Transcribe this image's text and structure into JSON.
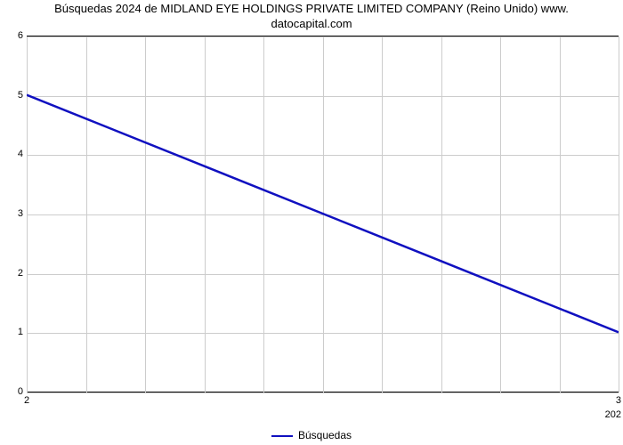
{
  "chart": {
    "type": "line",
    "title_line1": "Búsquedas 2024 de MIDLAND EYE HOLDINGS PRIVATE LIMITED COMPANY (Reino Unido) www.",
    "title_line2": "datocapital.com",
    "title_fontsize": 13,
    "title_color": "#000000",
    "background_color": "#ffffff",
    "grid_color": "#cccccc",
    "axis_color": "#000000",
    "xlim": [
      2,
      3
    ],
    "ylim": [
      0,
      6
    ],
    "yticks": [
      0,
      1,
      2,
      3,
      4,
      5,
      6
    ],
    "xticks": [
      2,
      3
    ],
    "xtick_labels": [
      "2",
      "3"
    ],
    "sub_xtick_label": "202",
    "minor_v_count": 10,
    "series": {
      "label": "Búsquedas",
      "color": "#1010c0",
      "line_width": 2.5,
      "points": [
        {
          "x": 2,
          "y": 5
        },
        {
          "x": 3,
          "y": 1
        }
      ]
    },
    "legend": {
      "label": "Búsquedas",
      "swatch_color": "#1010c0"
    },
    "tick_fontsize": 11
  }
}
